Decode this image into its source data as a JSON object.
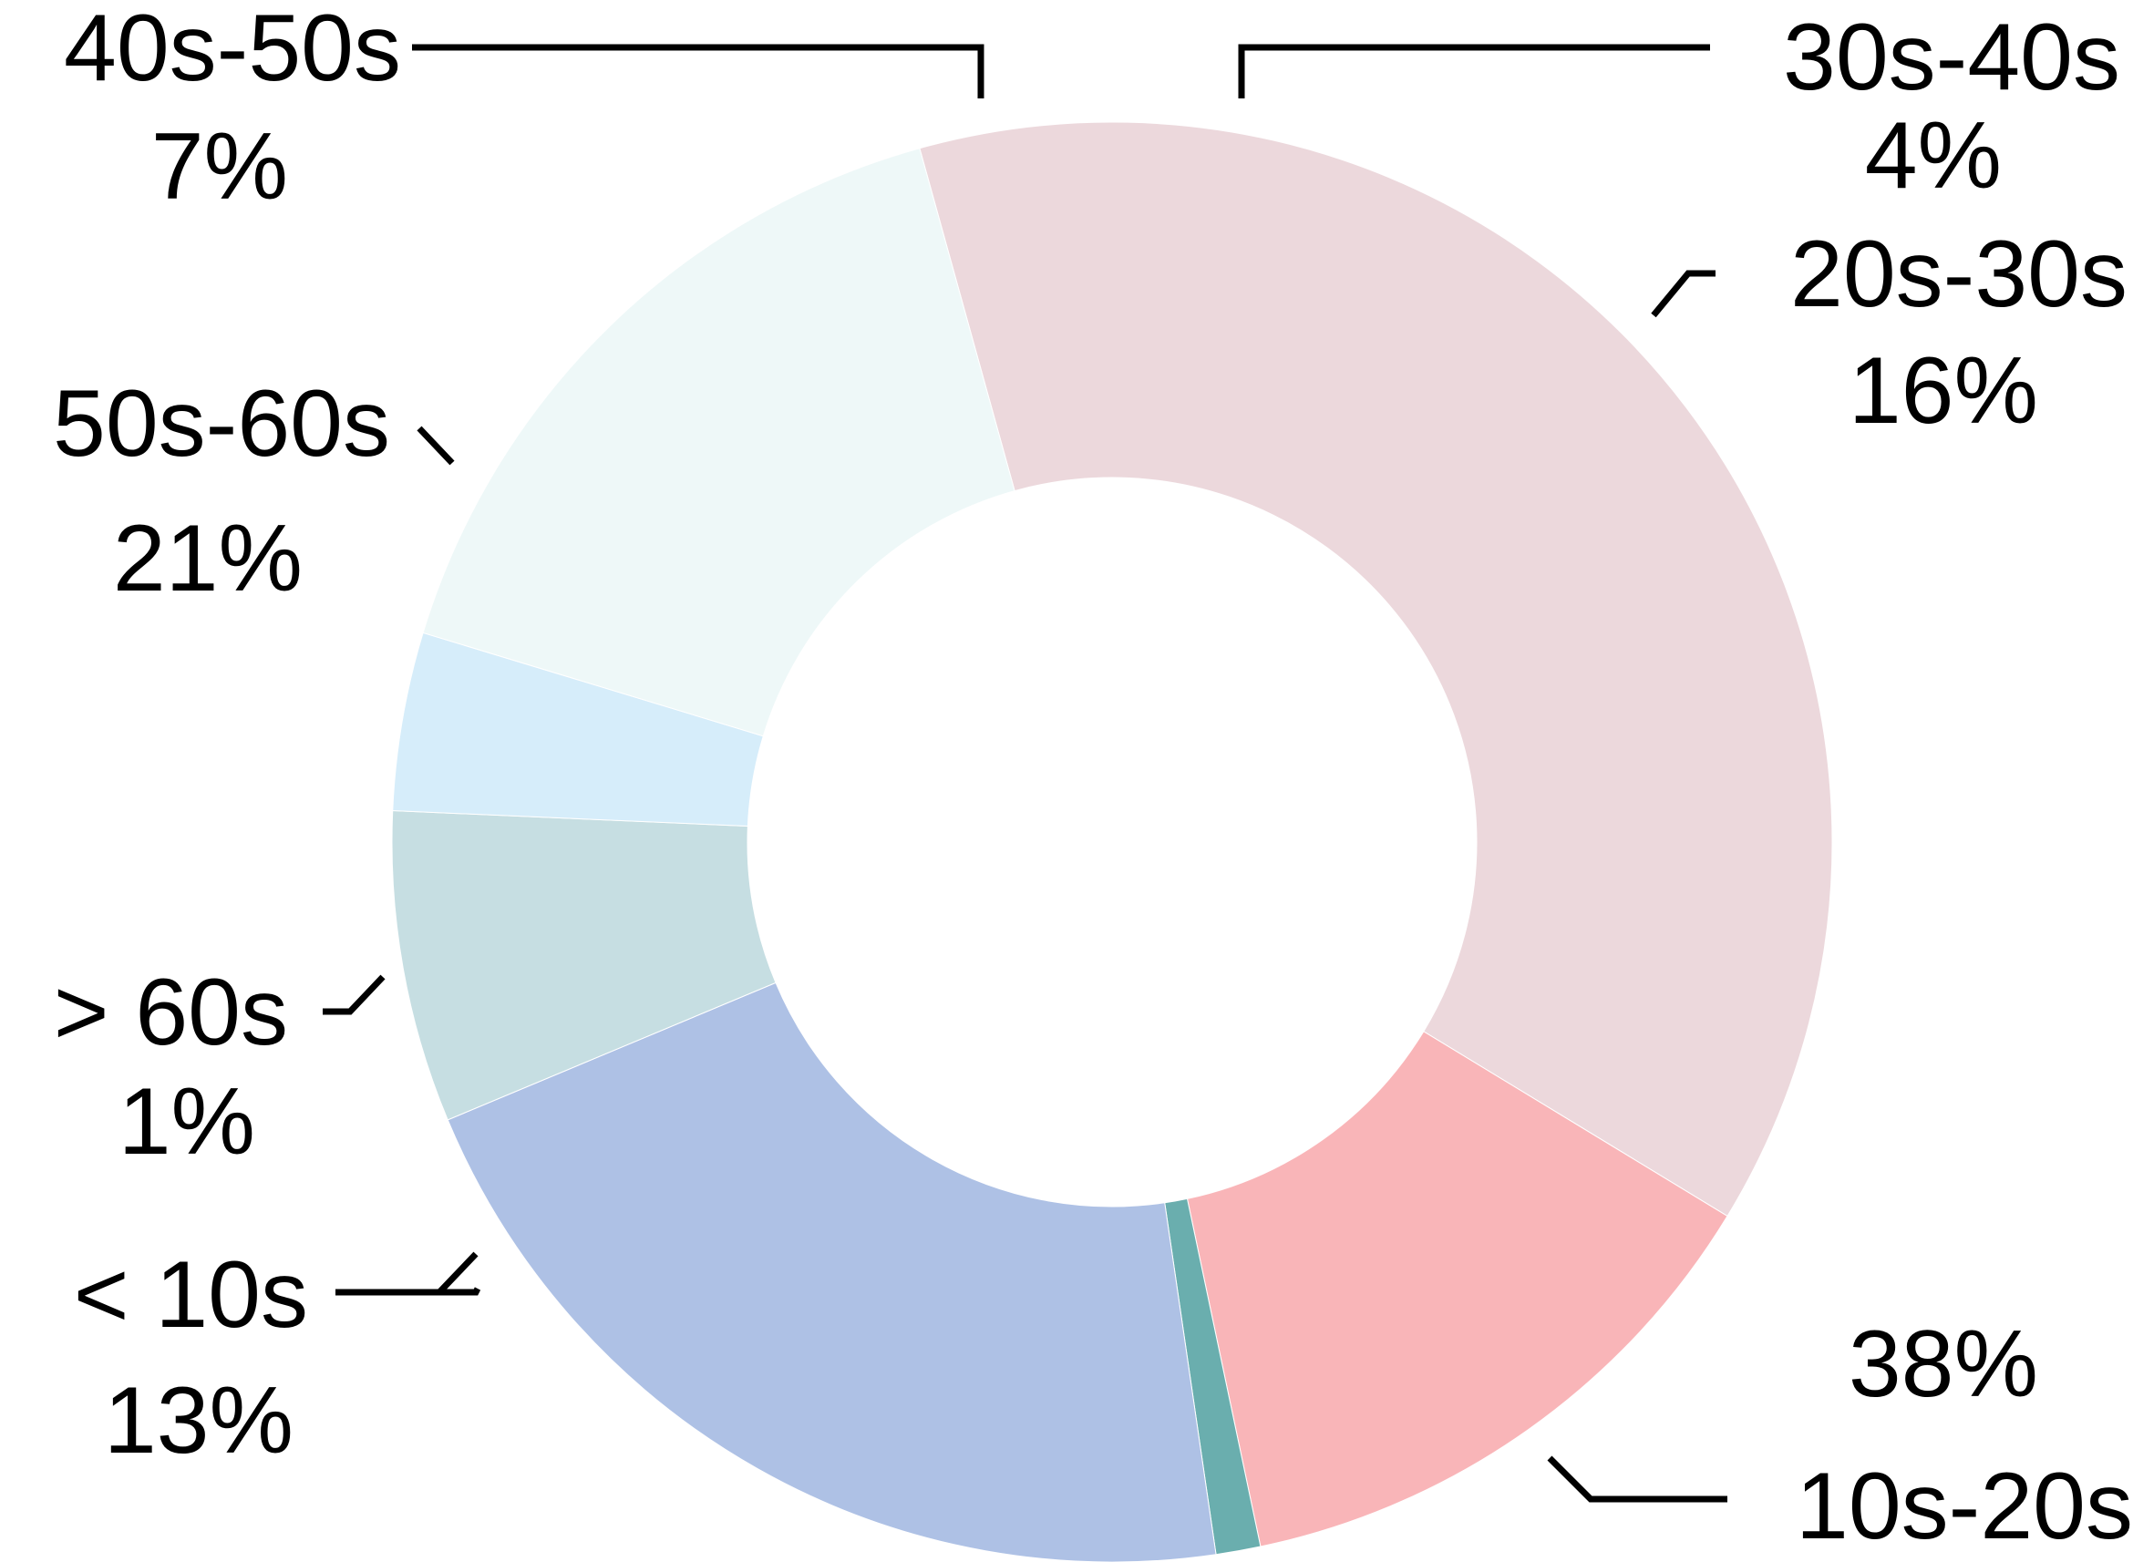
{
  "chart_data": {
    "type": "pie",
    "variant": "donut",
    "title": "",
    "legend": "none",
    "slices": [
      {
        "label": "10s-20s",
        "value": 38,
        "value_label": "38%",
        "color": "#ecd8dc"
      },
      {
        "label": "< 10s",
        "value": 13,
        "value_label": "13%",
        "color": "#f9b5b8"
      },
      {
        "label": "> 60s",
        "value": 1,
        "value_label": "1%",
        "color": "#6aaeae"
      },
      {
        "label": "50s-60s",
        "value": 21,
        "value_label": "21%",
        "color": "#aec1e5"
      },
      {
        "label": "40s-50s",
        "value": 7,
        "value_label": "7%",
        "color": "#c6dee2"
      },
      {
        "label": "30s-40s",
        "value": 4,
        "value_label": "4%",
        "color": "#d6edfa"
      },
      {
        "label": "20s-30s",
        "value": 16,
        "value_label": "16%",
        "color": "#eef8f8"
      }
    ]
  }
}
